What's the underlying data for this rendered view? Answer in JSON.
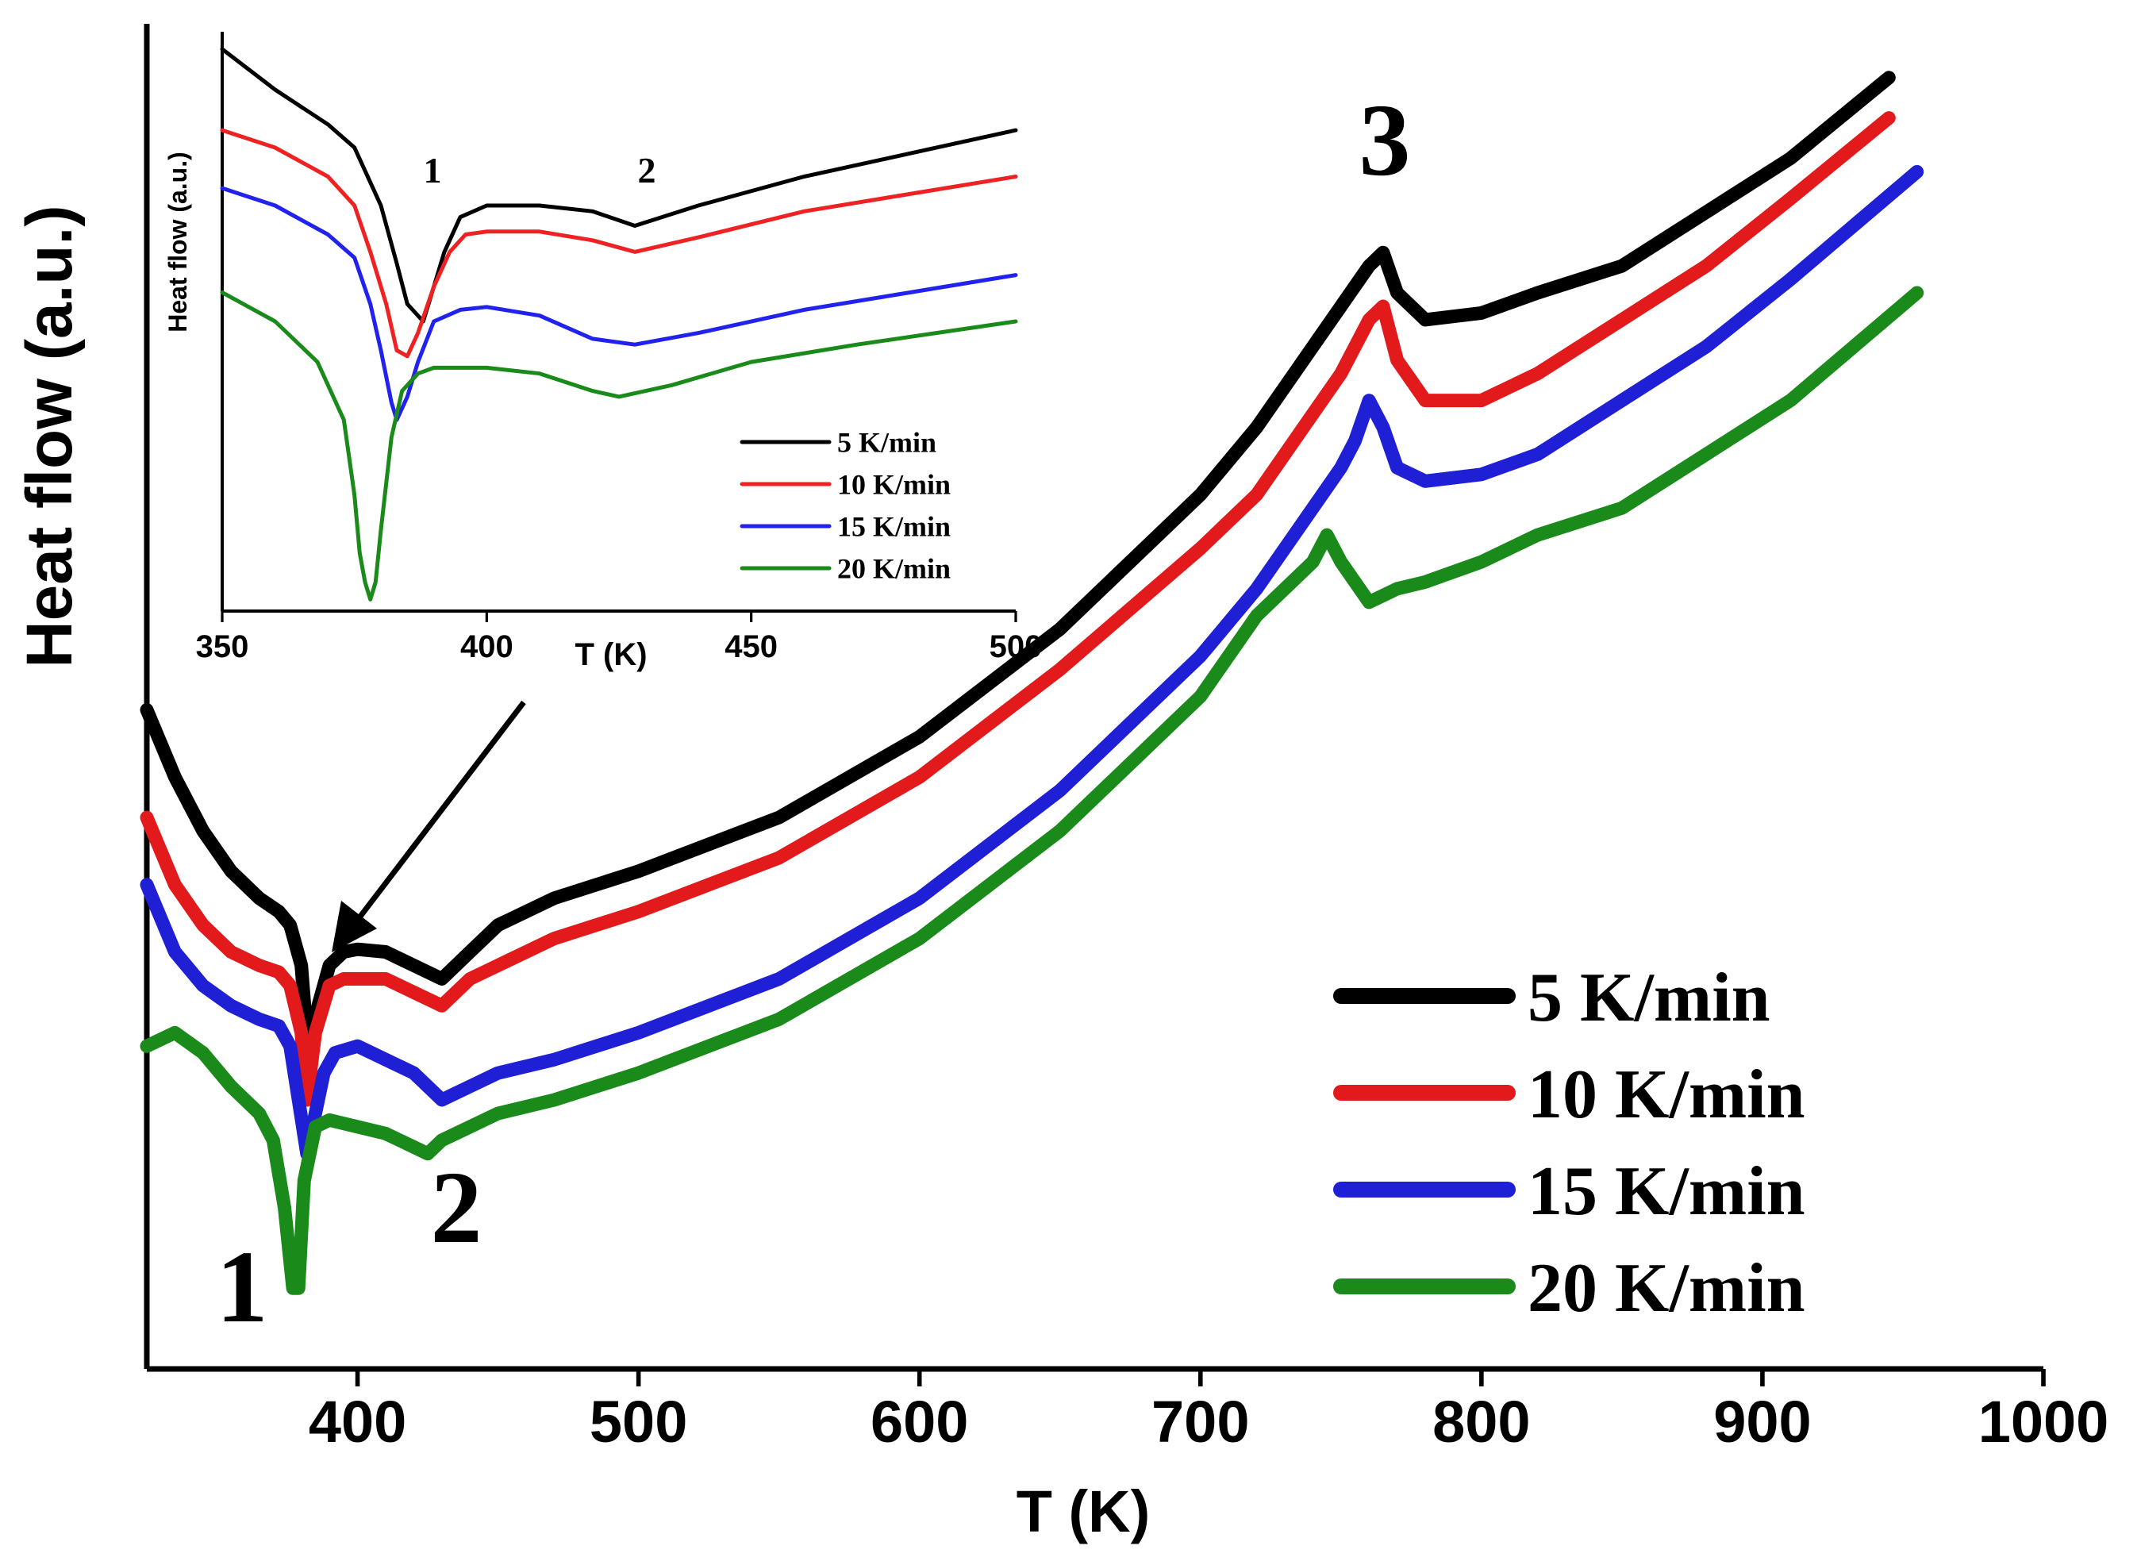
{
  "chart_data": [
    {
      "id": "main",
      "type": "line",
      "title": "",
      "xlabel": "T (K)",
      "ylabel": "Heat flow (a.u.)",
      "xlim": [
        325,
        1000
      ],
      "ylim": [
        0,
        1
      ],
      "xticks": [
        400,
        500,
        600,
        700,
        800,
        900,
        1000
      ],
      "legend_position": "bottom-right",
      "annotations": [
        {
          "text": "1",
          "x": 358,
          "y": 0.08
        },
        {
          "text": "2",
          "x": 360,
          "y": 0.12
        },
        {
          "text": "3",
          "x": 744,
          "y": 0.93
        }
      ],
      "series": [
        {
          "name": "5 K/min",
          "color": "#000000",
          "x": [
            325,
            335,
            345,
            355,
            365,
            372,
            376,
            380,
            383,
            386,
            390,
            395,
            400,
            410,
            420,
            430,
            440,
            450,
            470,
            500,
            550,
            600,
            650,
            700,
            720,
            740,
            750,
            760,
            765,
            770,
            780,
            800,
            820,
            850,
            880,
            910,
            945
          ],
          "y": [
            0.49,
            0.44,
            0.4,
            0.37,
            0.35,
            0.34,
            0.33,
            0.3,
            0.22,
            0.27,
            0.3,
            0.31,
            0.312,
            0.31,
            0.3,
            0.29,
            0.31,
            0.33,
            0.35,
            0.37,
            0.41,
            0.47,
            0.55,
            0.65,
            0.7,
            0.76,
            0.79,
            0.82,
            0.83,
            0.8,
            0.78,
            0.785,
            0.8,
            0.82,
            0.86,
            0.9,
            0.96
          ]
        },
        {
          "name": "10 K/min",
          "color": "#e31a1c",
          "x": [
            325,
            335,
            345,
            355,
            365,
            372,
            376,
            380,
            382,
            385,
            390,
            395,
            400,
            410,
            420,
            430,
            440,
            450,
            470,
            500,
            550,
            600,
            650,
            700,
            720,
            740,
            750,
            755,
            760,
            765,
            770,
            780,
            800,
            820,
            850,
            880,
            910,
            945
          ],
          "y": [
            0.41,
            0.36,
            0.33,
            0.31,
            0.3,
            0.295,
            0.285,
            0.25,
            0.2,
            0.25,
            0.285,
            0.29,
            0.29,
            0.29,
            0.28,
            0.27,
            0.29,
            0.3,
            0.32,
            0.34,
            0.38,
            0.44,
            0.52,
            0.61,
            0.65,
            0.71,
            0.74,
            0.76,
            0.78,
            0.79,
            0.75,
            0.72,
            0.72,
            0.74,
            0.78,
            0.82,
            0.87,
            0.93
          ]
        },
        {
          "name": "15 K/min",
          "color": "#1f1fd6",
          "x": [
            325,
            335,
            345,
            355,
            365,
            372,
            376,
            379,
            382,
            385,
            388,
            392,
            400,
            410,
            420,
            430,
            440,
            450,
            470,
            500,
            550,
            600,
            650,
            700,
            720,
            740,
            750,
            755,
            760,
            765,
            770,
            780,
            800,
            820,
            850,
            880,
            910,
            955
          ],
          "y": [
            0.36,
            0.31,
            0.285,
            0.27,
            0.26,
            0.255,
            0.24,
            0.2,
            0.16,
            0.19,
            0.22,
            0.235,
            0.24,
            0.23,
            0.22,
            0.2,
            0.21,
            0.22,
            0.23,
            0.25,
            0.29,
            0.35,
            0.43,
            0.53,
            0.58,
            0.64,
            0.67,
            0.69,
            0.72,
            0.7,
            0.67,
            0.66,
            0.665,
            0.68,
            0.72,
            0.76,
            0.81,
            0.89
          ]
        },
        {
          "name": "20 K/min",
          "color": "#1a8a1a",
          "x": [
            325,
            335,
            345,
            355,
            365,
            370,
            374,
            377,
            379,
            381,
            385,
            390,
            400,
            410,
            420,
            425,
            430,
            440,
            450,
            470,
            500,
            550,
            600,
            650,
            700,
            720,
            740,
            745,
            750,
            760,
            770,
            780,
            800,
            820,
            850,
            880,
            910,
            955
          ],
          "y": [
            0.24,
            0.25,
            0.235,
            0.21,
            0.19,
            0.17,
            0.12,
            0.06,
            0.06,
            0.14,
            0.18,
            0.185,
            0.18,
            0.175,
            0.165,
            0.16,
            0.17,
            0.18,
            0.19,
            0.2,
            0.22,
            0.26,
            0.32,
            0.4,
            0.5,
            0.56,
            0.6,
            0.62,
            0.6,
            0.57,
            0.58,
            0.585,
            0.6,
            0.62,
            0.64,
            0.68,
            0.72,
            0.8
          ]
        }
      ]
    },
    {
      "id": "inset",
      "type": "line",
      "title": "",
      "xlabel": "T (K)",
      "ylabel": "Heat flow (a.u.)",
      "xlim": [
        350,
        500
      ],
      "ylim": [
        0,
        1
      ],
      "xticks": [
        350,
        400,
        450,
        500
      ],
      "legend_position": "bottom-right",
      "annotations": [
        {
          "text": "1",
          "x": 389,
          "y": 0.78
        },
        {
          "text": "2",
          "x": 428,
          "y": 0.78
        }
      ],
      "series": [
        {
          "name": "5 K/min",
          "color": "#000000",
          "x": [
            350,
            360,
            370,
            375,
            380,
            383,
            385,
            388,
            390,
            392,
            395,
            400,
            410,
            420,
            428,
            440,
            460,
            480,
            500
          ],
          "y": [
            0.97,
            0.9,
            0.84,
            0.8,
            0.7,
            0.6,
            0.53,
            0.5,
            0.56,
            0.62,
            0.68,
            0.7,
            0.7,
            0.69,
            0.665,
            0.7,
            0.75,
            0.79,
            0.83
          ]
        },
        {
          "name": "10 K/min",
          "color": "#ee2222",
          "x": [
            350,
            360,
            370,
            375,
            378,
            381,
            383,
            385,
            387,
            390,
            393,
            396,
            400,
            410,
            420,
            428,
            440,
            460,
            480,
            500
          ],
          "y": [
            0.83,
            0.8,
            0.75,
            0.7,
            0.62,
            0.53,
            0.45,
            0.44,
            0.48,
            0.56,
            0.62,
            0.65,
            0.655,
            0.655,
            0.64,
            0.62,
            0.645,
            0.69,
            0.72,
            0.75
          ]
        },
        {
          "name": "15 K/min",
          "color": "#2222ee",
          "x": [
            350,
            360,
            370,
            375,
            378,
            380,
            382,
            383,
            385,
            387,
            390,
            395,
            400,
            410,
            420,
            428,
            440,
            460,
            480,
            500
          ],
          "y": [
            0.73,
            0.7,
            0.65,
            0.61,
            0.53,
            0.45,
            0.36,
            0.33,
            0.37,
            0.43,
            0.5,
            0.52,
            0.525,
            0.51,
            0.47,
            0.46,
            0.48,
            0.52,
            0.55,
            0.58
          ]
        },
        {
          "name": "20 K/min",
          "color": "#1a8a1a",
          "x": [
            350,
            360,
            368,
            373,
            375,
            376,
            377,
            378,
            379,
            380,
            382,
            384,
            387,
            390,
            400,
            410,
            420,
            425,
            435,
            450,
            470,
            500
          ],
          "y": [
            0.55,
            0.5,
            0.43,
            0.33,
            0.2,
            0.1,
            0.05,
            0.02,
            0.05,
            0.14,
            0.3,
            0.38,
            0.41,
            0.42,
            0.42,
            0.41,
            0.38,
            0.37,
            0.39,
            0.43,
            0.46,
            0.5
          ]
        }
      ]
    }
  ]
}
